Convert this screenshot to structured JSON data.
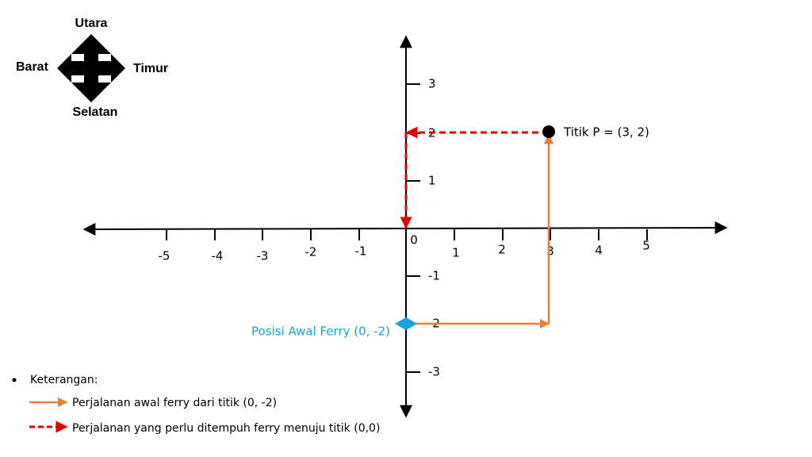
{
  "compass": {
    "north": "Utara",
    "west": "Barat",
    "east": "Timur",
    "south": "Selatan"
  },
  "axes": {
    "x_labels": [
      "-5",
      "-4",
      "-3",
      "-2",
      "-1",
      "0",
      "1",
      "2",
      "3",
      "4",
      "5"
    ],
    "y_labels": [
      "3",
      "2",
      "1",
      "-1",
      "-2",
      "-3"
    ]
  },
  "points": [
    {
      "label": "Titik P = (3, 2)"
    },
    {
      "label": "Posisi Awal Ferry (0, -2)"
    }
  ],
  "legend": {
    "title": "Keterangan:",
    "items": [
      "Perjalanan awal ferry  dari titik (0, -2)",
      "Perjalanan yang perlu ditempuh ferry menuju titik (0,0)"
    ]
  }
}
